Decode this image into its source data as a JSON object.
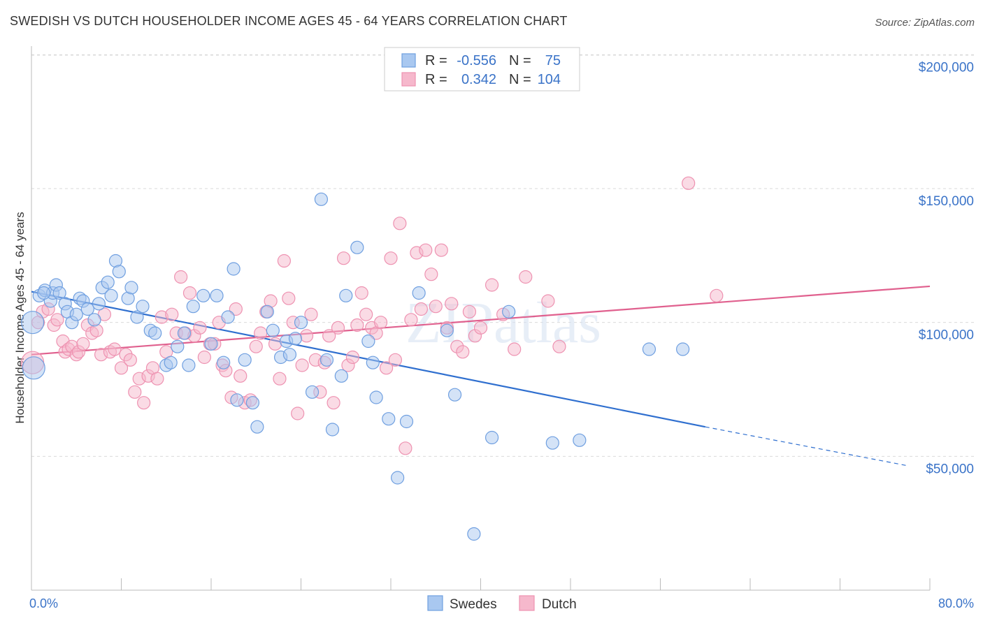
{
  "header": {
    "title": "SWEDISH VS DUTCH HOUSEHOLDER INCOME AGES 45 - 64 YEARS CORRELATION CHART",
    "source": "Source: ZipAtlas.com"
  },
  "legend": {
    "rows": [
      {
        "r_label": "R =",
        "r_value": "-0.556",
        "n_label": "N =",
        "n_value": "75"
      },
      {
        "r_label": "R =",
        "r_value": "0.342",
        "n_label": "N =",
        "n_value": "104"
      }
    ]
  },
  "bottom_legend": {
    "items": [
      "Swedes",
      "Dutch"
    ]
  },
  "watermark": "ZIPatlas",
  "colors": {
    "swedes_fill": "#a9c8f0",
    "swedes_stroke": "#6f9fe0",
    "swedes_line": "#2f6fcf",
    "dutch_fill": "#f6b8cc",
    "dutch_stroke": "#ee92b1",
    "dutch_line": "#e0608e",
    "tick_text": "#3a73c8",
    "grid": "#d9d9d9"
  },
  "chart_data": {
    "type": "scatter",
    "title": "SWEDISH VS DUTCH HOUSEHOLDER INCOME AGES 45 - 64 YEARS CORRELATION CHART",
    "xlabel": "",
    "ylabel": "Householder Income Ages 45 - 64 years",
    "xlim": [
      0,
      80
    ],
    "ylim": [
      0,
      210000
    ],
    "x_tick_labels": [
      "0.0%",
      "80.0%"
    ],
    "y_tick_labels": [
      "$50,000",
      "$100,000",
      "$150,000",
      "$200,000"
    ],
    "y_ticks": [
      50000,
      100000,
      150000,
      200000
    ],
    "grid": true,
    "legend_position": "top-center",
    "series": [
      {
        "name": "Swedes",
        "r": -0.556,
        "n": 75,
        "trend": {
          "x0": 0,
          "y0": 111500,
          "x1": 60,
          "y1": 61000,
          "dash_to_x": 78,
          "dash_to_y": 46500
        },
        "points": [
          [
            0.2,
            83000
          ],
          [
            0.7,
            110000
          ],
          [
            1.2,
            112000
          ],
          [
            1.7,
            108000
          ],
          [
            1.9,
            111000
          ],
          [
            2.2,
            114000
          ],
          [
            2.5,
            111000
          ],
          [
            3.0,
            107000
          ],
          [
            3.2,
            104000
          ],
          [
            3.6,
            100000
          ],
          [
            4.0,
            103000
          ],
          [
            4.3,
            109000
          ],
          [
            4.6,
            108000
          ],
          [
            5.0,
            105000
          ],
          [
            5.6,
            101000
          ],
          [
            6.0,
            107000
          ],
          [
            6.3,
            113000
          ],
          [
            6.8,
            115000
          ],
          [
            7.1,
            110000
          ],
          [
            7.5,
            123000
          ],
          [
            7.8,
            119000
          ],
          [
            8.6,
            109000
          ],
          [
            8.9,
            113000
          ],
          [
            9.4,
            102000
          ],
          [
            9.9,
            106000
          ],
          [
            10.6,
            97000
          ],
          [
            11.0,
            96000
          ],
          [
            12.0,
            84000
          ],
          [
            12.4,
            85000
          ],
          [
            13.0,
            91000
          ],
          [
            13.6,
            96000
          ],
          [
            14.0,
            84000
          ],
          [
            14.4,
            106000
          ],
          [
            15.3,
            110000
          ],
          [
            16.0,
            92000
          ],
          [
            16.5,
            110000
          ],
          [
            17.1,
            85000
          ],
          [
            17.5,
            102000
          ],
          [
            18.0,
            120000
          ],
          [
            18.3,
            71000
          ],
          [
            19.0,
            86000
          ],
          [
            19.7,
            70000
          ],
          [
            20.1,
            61000
          ],
          [
            21.0,
            104000
          ],
          [
            21.5,
            97000
          ],
          [
            22.2,
            87000
          ],
          [
            22.7,
            93000
          ],
          [
            23.0,
            88000
          ],
          [
            23.5,
            94000
          ],
          [
            24.0,
            100000
          ],
          [
            25.0,
            74000
          ],
          [
            25.8,
            146000
          ],
          [
            26.3,
            86000
          ],
          [
            26.8,
            60000
          ],
          [
            27.6,
            80000
          ],
          [
            28.0,
            110000
          ],
          [
            29.0,
            128000
          ],
          [
            30.0,
            93000
          ],
          [
            30.4,
            85000
          ],
          [
            30.7,
            72000
          ],
          [
            31.8,
            64000
          ],
          [
            32.6,
            42000
          ],
          [
            33.4,
            63000
          ],
          [
            34.5,
            111000
          ],
          [
            37.0,
            97000
          ],
          [
            37.7,
            73000
          ],
          [
            39.4,
            21000
          ],
          [
            41.0,
            57000
          ],
          [
            42.5,
            104000
          ],
          [
            46.4,
            55000
          ],
          [
            48.8,
            56000
          ],
          [
            55.0,
            90000
          ],
          [
            58.0,
            90000
          ],
          [
            0.1,
            100000
          ],
          [
            1.1,
            111000
          ]
        ]
      },
      {
        "name": "Dutch",
        "r": 0.342,
        "n": 104,
        "trend": {
          "x0": 0,
          "y0": 88000,
          "x1": 80,
          "y1": 113500
        },
        "points": [
          [
            0.1,
            85000
          ],
          [
            0.6,
            100000
          ],
          [
            1.0,
            104000
          ],
          [
            1.5,
            105000
          ],
          [
            2.0,
            99000
          ],
          [
            2.3,
            101000
          ],
          [
            2.8,
            93000
          ],
          [
            3.0,
            89000
          ],
          [
            3.3,
            90000
          ],
          [
            3.6,
            91000
          ],
          [
            4.0,
            88000
          ],
          [
            4.2,
            89000
          ],
          [
            4.6,
            92000
          ],
          [
            5.0,
            99000
          ],
          [
            5.4,
            96000
          ],
          [
            5.8,
            97000
          ],
          [
            6.2,
            88000
          ],
          [
            6.5,
            103000
          ],
          [
            7.0,
            89000
          ],
          [
            7.4,
            90000
          ],
          [
            8.0,
            83000
          ],
          [
            8.4,
            88000
          ],
          [
            8.8,
            86000
          ],
          [
            9.2,
            74000
          ],
          [
            9.6,
            79000
          ],
          [
            10.0,
            70000
          ],
          [
            10.4,
            80000
          ],
          [
            10.8,
            83000
          ],
          [
            11.2,
            79000
          ],
          [
            11.6,
            102000
          ],
          [
            12.0,
            89000
          ],
          [
            12.5,
            103000
          ],
          [
            12.9,
            96000
          ],
          [
            13.3,
            117000
          ],
          [
            13.7,
            96000
          ],
          [
            14.1,
            111000
          ],
          [
            14.5,
            95000
          ],
          [
            15.0,
            98000
          ],
          [
            15.4,
            87000
          ],
          [
            15.9,
            92000
          ],
          [
            16.3,
            92000
          ],
          [
            16.7,
            100000
          ],
          [
            17.0,
            84000
          ],
          [
            17.3,
            82000
          ],
          [
            17.8,
            72000
          ],
          [
            18.2,
            105000
          ],
          [
            18.6,
            80000
          ],
          [
            19.0,
            70000
          ],
          [
            19.5,
            71000
          ],
          [
            20.0,
            91000
          ],
          [
            20.4,
            96000
          ],
          [
            20.9,
            104000
          ],
          [
            21.3,
            108000
          ],
          [
            21.7,
            92000
          ],
          [
            22.1,
            79000
          ],
          [
            22.5,
            123000
          ],
          [
            22.9,
            109000
          ],
          [
            23.3,
            100000
          ],
          [
            23.7,
            66000
          ],
          [
            24.1,
            84000
          ],
          [
            24.5,
            95000
          ],
          [
            24.9,
            103000
          ],
          [
            25.3,
            86000
          ],
          [
            25.7,
            74000
          ],
          [
            26.1,
            85000
          ],
          [
            26.5,
            95000
          ],
          [
            26.9,
            70000
          ],
          [
            27.3,
            98000
          ],
          [
            27.8,
            124000
          ],
          [
            28.2,
            84000
          ],
          [
            28.6,
            87000
          ],
          [
            29.0,
            99000
          ],
          [
            29.4,
            111000
          ],
          [
            29.8,
            103000
          ],
          [
            30.3,
            98000
          ],
          [
            30.7,
            96000
          ],
          [
            31.1,
            100000
          ],
          [
            31.6,
            83000
          ],
          [
            32.0,
            124000
          ],
          [
            32.4,
            86000
          ],
          [
            32.8,
            137000
          ],
          [
            33.3,
            53000
          ],
          [
            33.8,
            101000
          ],
          [
            34.3,
            126000
          ],
          [
            34.7,
            105000
          ],
          [
            35.1,
            127000
          ],
          [
            35.6,
            118000
          ],
          [
            36.0,
            106000
          ],
          [
            36.5,
            127000
          ],
          [
            37.0,
            98000
          ],
          [
            37.4,
            107000
          ],
          [
            37.9,
            91000
          ],
          [
            38.4,
            89000
          ],
          [
            39.0,
            104000
          ],
          [
            39.5,
            95000
          ],
          [
            40.0,
            98000
          ],
          [
            41.0,
            114000
          ],
          [
            42.0,
            103000
          ],
          [
            43.0,
            90000
          ],
          [
            44.0,
            117000
          ],
          [
            46.0,
            108000
          ],
          [
            47.0,
            91000
          ],
          [
            58.5,
            152000
          ],
          [
            61.0,
            110000
          ]
        ]
      }
    ]
  }
}
